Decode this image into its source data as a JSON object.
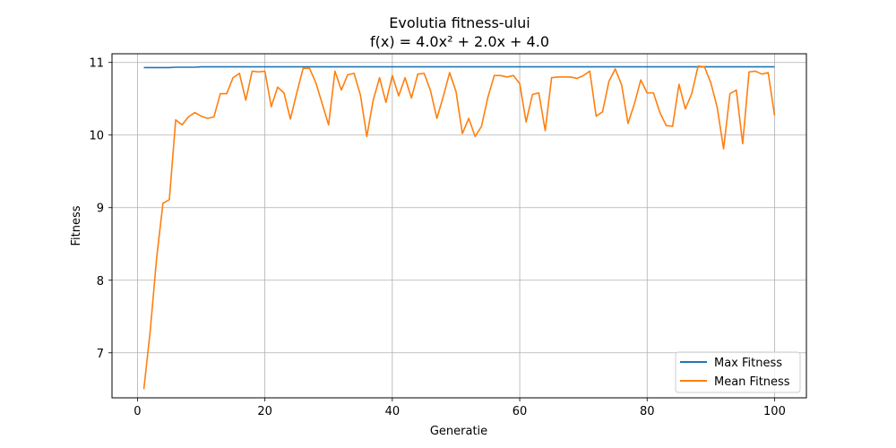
{
  "chart_data": {
    "type": "line",
    "title": "Evolutia fitness-ului",
    "subtitle": "f(x) = 4.0x² + 2.0x + 4.0",
    "xlabel": "Generatie",
    "ylabel": "Fitness",
    "xlim": [
      -4,
      105
    ],
    "ylim": [
      6.38,
      11.12
    ],
    "xticks": [
      0,
      20,
      40,
      60,
      80,
      100
    ],
    "yticks": [
      7,
      8,
      9,
      10,
      11
    ],
    "grid": true,
    "legend_position": "bottom-right",
    "x": [
      1,
      2,
      3,
      4,
      5,
      6,
      7,
      8,
      9,
      10,
      11,
      12,
      13,
      14,
      15,
      16,
      17,
      18,
      19,
      20,
      21,
      22,
      23,
      24,
      25,
      26,
      27,
      28,
      29,
      30,
      31,
      32,
      33,
      34,
      35,
      36,
      37,
      38,
      39,
      40,
      41,
      42,
      43,
      44,
      45,
      46,
      47,
      48,
      49,
      50,
      51,
      52,
      53,
      54,
      55,
      56,
      57,
      58,
      59,
      60,
      61,
      62,
      63,
      64,
      65,
      66,
      67,
      68,
      69,
      70,
      71,
      72,
      73,
      74,
      75,
      76,
      77,
      78,
      79,
      80,
      81,
      82,
      83,
      84,
      85,
      86,
      87,
      88,
      89,
      90,
      91,
      92,
      93,
      94,
      95,
      96,
      97,
      98,
      99,
      100
    ],
    "series": [
      {
        "name": "Max Fitness",
        "color": "#1f77b4",
        "values": [
          10.93,
          10.93,
          10.93,
          10.93,
          10.93,
          10.935,
          10.935,
          10.935,
          10.935,
          10.94,
          10.94,
          10.94,
          10.94,
          10.94,
          10.94,
          10.94,
          10.94,
          10.94,
          10.94,
          10.94,
          10.94,
          10.94,
          10.94,
          10.94,
          10.94,
          10.94,
          10.94,
          10.94,
          10.94,
          10.94,
          10.94,
          10.94,
          10.94,
          10.94,
          10.94,
          10.94,
          10.94,
          10.94,
          10.94,
          10.94,
          10.94,
          10.94,
          10.94,
          10.94,
          10.94,
          10.94,
          10.94,
          10.94,
          10.94,
          10.94,
          10.94,
          10.94,
          10.94,
          10.94,
          10.94,
          10.94,
          10.94,
          10.94,
          10.94,
          10.94,
          10.94,
          10.94,
          10.94,
          10.94,
          10.94,
          10.94,
          10.94,
          10.94,
          10.94,
          10.94,
          10.94,
          10.94,
          10.94,
          10.94,
          10.94,
          10.94,
          10.94,
          10.94,
          10.94,
          10.94,
          10.94,
          10.94,
          10.94,
          10.94,
          10.94,
          10.94,
          10.94,
          10.94,
          10.94,
          10.94,
          10.94,
          10.94,
          10.94,
          10.94,
          10.94,
          10.94,
          10.94,
          10.94,
          10.94,
          10.94
        ]
      },
      {
        "name": "Mean Fitness",
        "color": "#ff7f0e",
        "values": [
          6.5,
          7.3,
          8.3,
          9.06,
          9.11,
          10.21,
          10.14,
          10.25,
          10.31,
          10.26,
          10.23,
          10.25,
          10.57,
          10.57,
          10.79,
          10.85,
          10.48,
          10.88,
          10.87,
          10.88,
          10.39,
          10.66,
          10.58,
          10.22,
          10.58,
          10.92,
          10.92,
          10.72,
          10.43,
          10.14,
          10.88,
          10.62,
          10.83,
          10.85,
          10.55,
          9.98,
          10.48,
          10.79,
          10.45,
          10.82,
          10.54,
          10.79,
          10.51,
          10.84,
          10.85,
          10.61,
          10.23,
          10.53,
          10.86,
          10.6,
          10.02,
          10.23,
          9.98,
          10.12,
          10.52,
          10.82,
          10.82,
          10.8,
          10.82,
          10.71,
          10.18,
          10.56,
          10.58,
          10.06,
          10.79,
          10.8,
          10.8,
          10.8,
          10.78,
          10.82,
          10.88,
          10.26,
          10.32,
          10.74,
          10.91,
          10.69,
          10.16,
          10.43,
          10.76,
          10.58,
          10.58,
          10.31,
          10.13,
          10.12,
          10.7,
          10.36,
          10.57,
          10.95,
          10.94,
          10.72,
          10.38,
          9.81,
          10.57,
          10.62,
          9.88,
          10.87,
          10.88,
          10.84,
          10.86,
          10.27
        ]
      }
    ]
  }
}
